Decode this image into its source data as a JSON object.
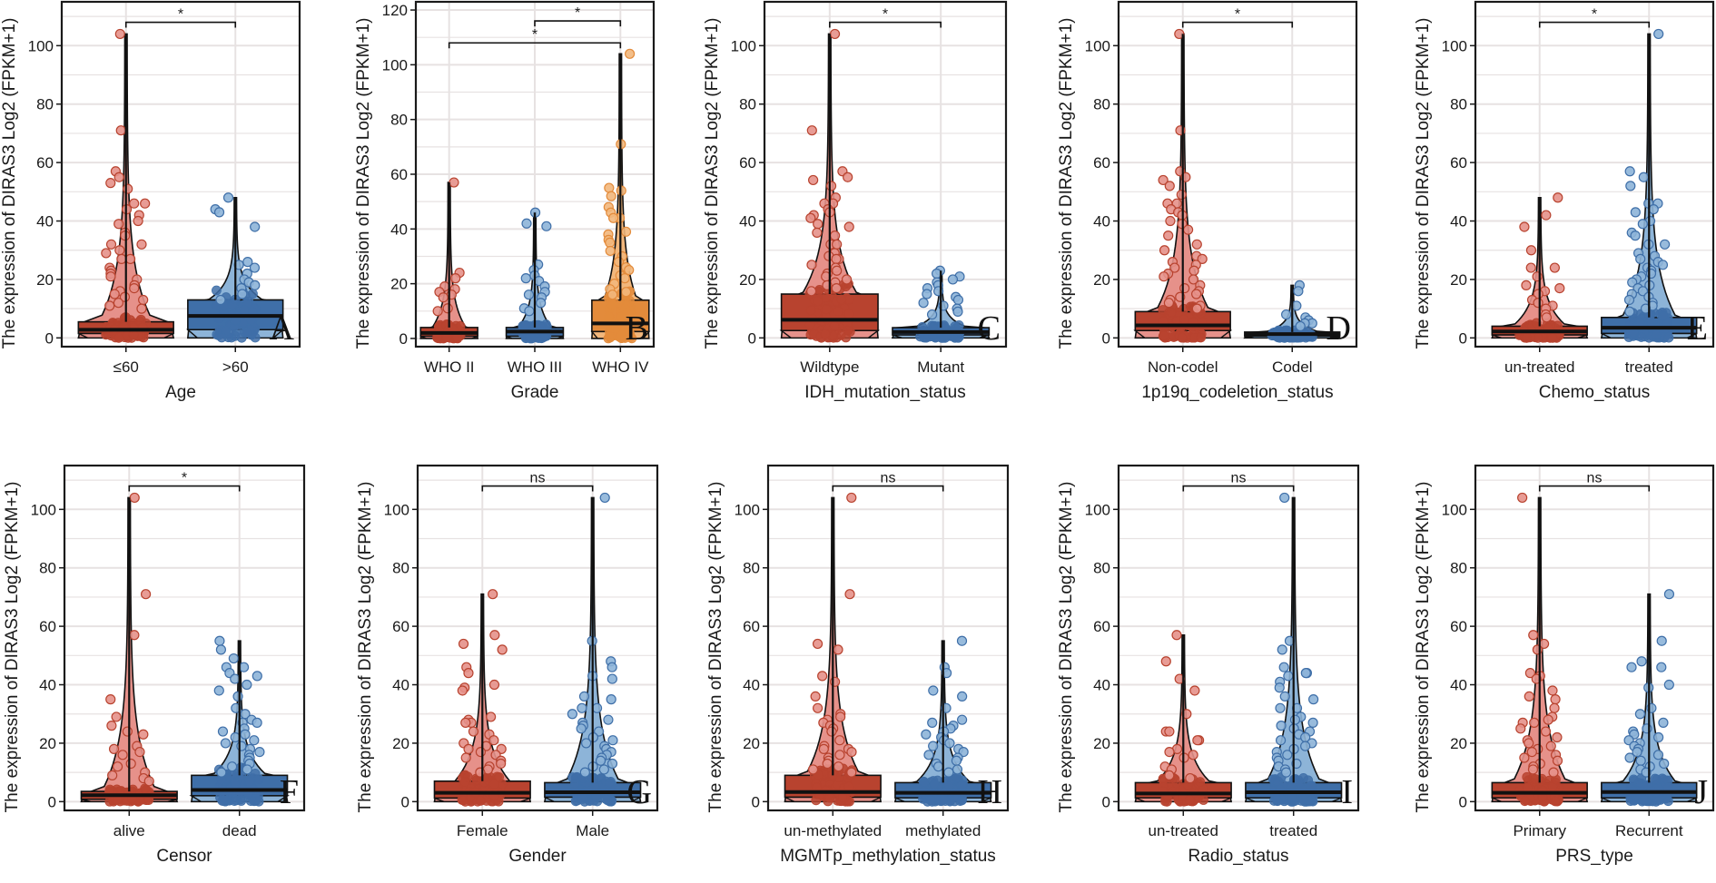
{
  "figure": {
    "ylabel": "The expression of DIRAS3 Log2 (FPKM+1)",
    "colors": {
      "red": "#b8432f",
      "red_light": "#e6918a",
      "blue": "#3f6fa8",
      "blue_light": "#8db4d8",
      "orange": "#e38b3b",
      "orange_light": "#f2b77c",
      "grid": "#e7e2e2",
      "frame": "#1a1a1a"
    }
  },
  "chart_data": [
    {
      "panel": "A",
      "type": "violin+box+jitter",
      "xlabel": "Age",
      "ylabel": "The expression of DIRAS3 Log2 (FPKM+1)",
      "yticks": [
        0,
        20,
        40,
        60,
        80,
        100
      ],
      "ylim": [
        -3,
        115
      ],
      "grid": true,
      "categories": [
        "≤60",
        ">60"
      ],
      "groups": [
        {
          "name": "≤60",
          "color": "red",
          "q1": 1.5,
          "median": 2.8,
          "q3": 5.5,
          "max": 104,
          "outliers": [
            104,
            71,
            57,
            55,
            53,
            51,
            46,
            46,
            44,
            42,
            40,
            39,
            36,
            35,
            32,
            32,
            30,
            29,
            27,
            27,
            24,
            23,
            22,
            21,
            20,
            18,
            17,
            16,
            15,
            14,
            13,
            12,
            11,
            10
          ]
        },
        {
          "name": ">60",
          "color": "blue",
          "q1": 2.8,
          "median": 7.5,
          "q3": 13,
          "max": 48,
          "outliers": [
            48,
            44,
            43,
            38,
            26,
            25,
            24,
            22,
            20,
            19,
            18,
            17,
            15,
            13
          ]
        }
      ],
      "comparisons": [
        {
          "from": 0,
          "to": 1,
          "label": "*",
          "y": 108
        }
      ]
    },
    {
      "panel": "B",
      "type": "violin+box+jitter",
      "xlabel": "Grade",
      "ylabel": "The expression of DIRAS3 Log2 (FPKM+1)",
      "yticks": [
        0,
        20,
        40,
        60,
        80,
        100,
        120
      ],
      "ylim": [
        -3,
        123
      ],
      "grid": true,
      "categories": [
        "WHO II",
        "WHO III",
        "WHO IV"
      ],
      "groups": [
        {
          "name": "WHO II",
          "color": "red",
          "q1": 0.8,
          "median": 2,
          "q3": 4,
          "max": 57,
          "outliers": [
            57,
            24,
            22,
            19,
            18,
            17,
            16,
            15,
            11,
            10
          ]
        },
        {
          "name": "WHO III",
          "color": "blue",
          "q1": 0.8,
          "median": 2.5,
          "q3": 4,
          "max": 46,
          "outliers": [
            46,
            42,
            41,
            27,
            25,
            23,
            22,
            21,
            19,
            17,
            16,
            15,
            13,
            11,
            10
          ]
        },
        {
          "name": "WHO IV",
          "color": "orange",
          "q1": 2.5,
          "median": 5.5,
          "q3": 14,
          "max": 104,
          "outliers": [
            104,
            71,
            55,
            54,
            52,
            48,
            46,
            44,
            44,
            39,
            38,
            36,
            35,
            32,
            30,
            28,
            26,
            25,
            23,
            22,
            20,
            18,
            17,
            16
          ]
        }
      ],
      "comparisons": [
        {
          "from": 1,
          "to": 2,
          "label": "*",
          "y": 116
        },
        {
          "from": 0,
          "to": 2,
          "label": "*",
          "y": 108
        }
      ]
    },
    {
      "panel": "C",
      "type": "violin+box+jitter",
      "xlabel": "IDH_mutation_status",
      "ylabel": "The expression of DIRAS3 Log2 (FPKM+1)",
      "yticks": [
        0,
        20,
        40,
        60,
        80,
        100
      ],
      "ylim": [
        -3,
        115
      ],
      "grid": true,
      "categories": [
        "Wildtype",
        "Mutant"
      ],
      "groups": [
        {
          "name": "Wildtype",
          "color": "red",
          "q1": 2.5,
          "median": 6.2,
          "q3": 15,
          "max": 104,
          "outliers": [
            104,
            71,
            57,
            55,
            54,
            52,
            48,
            46,
            46,
            44,
            43,
            42,
            41,
            39,
            38,
            36,
            35,
            32,
            32,
            29,
            28,
            27,
            27,
            25,
            24,
            23,
            22,
            21,
            20,
            19,
            18,
            17,
            16
          ]
        },
        {
          "name": "Mutant",
          "color": "blue",
          "q1": 1,
          "median": 2,
          "q3": 3.5,
          "max": 23,
          "outliers": [
            23,
            22,
            21,
            20,
            19,
            18,
            17,
            16,
            15,
            14,
            13,
            12,
            11,
            10,
            9,
            8
          ]
        }
      ],
      "comparisons": [
        {
          "from": 0,
          "to": 1,
          "label": "*",
          "y": 108
        }
      ]
    },
    {
      "panel": "D",
      "type": "violin+box+jitter",
      "xlabel": "1p19q_codeletion_status",
      "ylabel": "The expression of DIRAS3 Log2 (FPKM+1)",
      "yticks": [
        0,
        20,
        40,
        60,
        80,
        100
      ],
      "ylim": [
        -3,
        115
      ],
      "grid": true,
      "categories": [
        "Non-codel",
        "Codel"
      ],
      "groups": [
        {
          "name": "Non-codel",
          "color": "red",
          "q1": 2.5,
          "median": 4.3,
          "q3": 9,
          "max": 104,
          "outliers": [
            104,
            71,
            57,
            55,
            54,
            52,
            49,
            46,
            46,
            44,
            43,
            42,
            40,
            39,
            37,
            35,
            32,
            30,
            28,
            27,
            26,
            25,
            24,
            23,
            22,
            21,
            20,
            18,
            17,
            16,
            15,
            14,
            13,
            12,
            11,
            10
          ]
        },
        {
          "name": "Codel",
          "color": "blue",
          "q1": 0.6,
          "median": 1.3,
          "q3": 2,
          "max": 18,
          "outliers": [
            18,
            16,
            11,
            8,
            7,
            6,
            5,
            5,
            4
          ]
        }
      ],
      "comparisons": [
        {
          "from": 0,
          "to": 1,
          "label": "*",
          "y": 108
        }
      ]
    },
    {
      "panel": "E",
      "type": "violin+box+jitter",
      "xlabel": "Chemo_status",
      "ylabel": "The expression of DIRAS3 Log2 (FPKM+1)",
      "yticks": [
        0,
        20,
        40,
        60,
        80,
        100
      ],
      "ylim": [
        -3,
        115
      ],
      "grid": true,
      "categories": [
        "un-treated",
        "treated"
      ],
      "groups": [
        {
          "name": "un-treated",
          "color": "red",
          "q1": 1,
          "median": 2.2,
          "q3": 4,
          "max": 48,
          "outliers": [
            48,
            42,
            38,
            30,
            24,
            24,
            21,
            18,
            17,
            16,
            15,
            13,
            12,
            11,
            10,
            8,
            7
          ]
        },
        {
          "name": "treated",
          "color": "blue",
          "q1": 1.5,
          "median": 3.5,
          "q3": 7,
          "max": 104,
          "outliers": [
            104,
            57,
            55,
            52,
            46,
            46,
            44,
            43,
            40,
            39,
            36,
            35,
            32,
            32,
            29,
            28,
            27,
            26,
            25,
            24,
            23,
            22,
            21,
            20,
            19,
            18,
            17,
            16,
            15,
            14,
            13,
            12,
            11,
            10,
            9
          ]
        }
      ],
      "comparisons": [
        {
          "from": 0,
          "to": 1,
          "label": "*",
          "y": 108
        }
      ]
    },
    {
      "panel": "F",
      "type": "violin+box+jitter",
      "xlabel": "Censor",
      "ylabel": "The expression of DIRAS3 Log2 (FPKM+1)",
      "yticks": [
        0,
        20,
        40,
        60,
        80,
        100
      ],
      "ylim": [
        -3,
        115
      ],
      "grid": true,
      "categories": [
        "alive",
        "dead"
      ],
      "groups": [
        {
          "name": "alive",
          "color": "red",
          "q1": 0.8,
          "median": 2.2,
          "q3": 3.5,
          "max": 104,
          "outliers": [
            104,
            71,
            57,
            35,
            29,
            26,
            24,
            23,
            19,
            18,
            17,
            16,
            13,
            12,
            10,
            9,
            8,
            7
          ]
        },
        {
          "name": "dead",
          "color": "blue",
          "q1": 2,
          "median": 4,
          "q3": 9,
          "max": 55,
          "outliers": [
            55,
            52,
            49,
            46,
            46,
            44,
            43,
            42,
            40,
            38,
            36,
            32,
            30,
            28,
            27,
            27,
            25,
            24,
            23,
            22,
            21,
            20,
            19,
            18,
            17,
            16,
            15,
            14,
            13,
            12,
            11,
            10
          ]
        }
      ],
      "comparisons": [
        {
          "from": 0,
          "to": 1,
          "label": "*",
          "y": 108
        }
      ]
    },
    {
      "panel": "G",
      "type": "violin+box+jitter",
      "xlabel": "Gender",
      "ylabel": "The expression of DIRAS3 Log2 (FPKM+1)",
      "yticks": [
        0,
        20,
        40,
        60,
        80,
        100
      ],
      "ylim": [
        -3,
        115
      ],
      "grid": true,
      "categories": [
        "Female",
        "Male"
      ],
      "groups": [
        {
          "name": "Female",
          "color": "red",
          "q1": 1.2,
          "median": 3,
          "q3": 7,
          "max": 71,
          "outliers": [
            71,
            57,
            54,
            52,
            46,
            44,
            40,
            39,
            38,
            29,
            28,
            27,
            27,
            24,
            23,
            21,
            20,
            19,
            18,
            18,
            17,
            16,
            15,
            14,
            13,
            12,
            11,
            10
          ]
        },
        {
          "name": "Male",
          "color": "blue",
          "q1": 1.5,
          "median": 3.2,
          "q3": 6.5,
          "max": 104,
          "outliers": [
            104,
            55,
            48,
            46,
            43,
            42,
            36,
            35,
            32,
            32,
            30,
            28,
            27,
            26,
            25,
            24,
            22,
            21,
            20,
            19,
            18,
            17,
            16,
            15,
            14,
            13,
            12,
            11,
            10
          ]
        }
      ],
      "comparisons": [
        {
          "from": 0,
          "to": 1,
          "label": "ns",
          "y": 108
        }
      ]
    },
    {
      "panel": "H",
      "type": "violin+box+jitter",
      "xlabel": "MGMTp_methylation_status",
      "ylabel": "The expression of DIRAS3 Log2 (FPKM+1)",
      "yticks": [
        0,
        20,
        40,
        60,
        80,
        100
      ],
      "ylim": [
        -3,
        115
      ],
      "grid": true,
      "categories": [
        "un-methylated",
        "methylated"
      ],
      "groups": [
        {
          "name": "un-methylated",
          "color": "red",
          "q1": 1.5,
          "median": 3.3,
          "q3": 9,
          "max": 104,
          "outliers": [
            104,
            71,
            54,
            52,
            43,
            41,
            36,
            32,
            30,
            29,
            28,
            27,
            26,
            25,
            24,
            21,
            19,
            18,
            18,
            17,
            16,
            15,
            14,
            13,
            12,
            11,
            10
          ]
        },
        {
          "name": "methylated",
          "color": "blue",
          "q1": 1.3,
          "median": 3,
          "q3": 6.5,
          "max": 55,
          "outliers": [
            55,
            46,
            44,
            38,
            36,
            32,
            28,
            27,
            26,
            25,
            24,
            23,
            22,
            21,
            20,
            19,
            18,
            17,
            16,
            15,
            14,
            13,
            12,
            11,
            10
          ]
        }
      ],
      "comparisons": [
        {
          "from": 0,
          "to": 1,
          "label": "ns",
          "y": 108
        }
      ]
    },
    {
      "panel": "I",
      "type": "violin+box+jitter",
      "xlabel": "Radio_status",
      "ylabel": "The expression of DIRAS3 Log2 (FPKM+1)",
      "yticks": [
        0,
        20,
        40,
        60,
        80,
        100
      ],
      "ylim": [
        -3,
        115
      ],
      "grid": true,
      "categories": [
        "un-treated",
        "treated"
      ],
      "groups": [
        {
          "name": "un-treated",
          "color": "red",
          "q1": 1.3,
          "median": 2.8,
          "q3": 6.5,
          "max": 57,
          "outliers": [
            57,
            48,
            42,
            38,
            30,
            24,
            24,
            21,
            21,
            18,
            17,
            16,
            15,
            12,
            11,
            9,
            8
          ]
        },
        {
          "name": "treated",
          "color": "blue",
          "q1": 1.3,
          "median": 3.2,
          "q3": 6.5,
          "max": 104,
          "outliers": [
            104,
            55,
            52,
            46,
            44,
            44,
            43,
            41,
            39,
            36,
            35,
            32,
            32,
            29,
            28,
            27,
            26,
            25,
            24,
            23,
            22,
            21,
            20,
            19,
            18,
            17,
            16,
            15,
            14,
            13,
            12,
            11,
            10
          ]
        }
      ],
      "comparisons": [
        {
          "from": 0,
          "to": 1,
          "label": "ns",
          "y": 108
        }
      ]
    },
    {
      "panel": "J",
      "type": "violin+box+jitter",
      "xlabel": "PRS_type",
      "ylabel": "The expression of DIRAS3 Log2 (FPKM+1)",
      "yticks": [
        0,
        20,
        40,
        60,
        80,
        100
      ],
      "ylim": [
        -3,
        115
      ],
      "grid": true,
      "categories": [
        "Primary",
        "Recurrent"
      ],
      "groups": [
        {
          "name": "Primary",
          "color": "red",
          "q1": 1.3,
          "median": 3,
          "q3": 6.5,
          "max": 104,
          "outliers": [
            104,
            57,
            54,
            52,
            44,
            43,
            42,
            38,
            36,
            35,
            32,
            29,
            28,
            27,
            27,
            25,
            24,
            22,
            21,
            20,
            19,
            18,
            17,
            16,
            15,
            14,
            13,
            12,
            11,
            10
          ]
        },
        {
          "name": "Recurrent",
          "color": "blue",
          "q1": 1.3,
          "median": 3.3,
          "q3": 6.5,
          "max": 71,
          "outliers": [
            71,
            55,
            48,
            46,
            46,
            40,
            39,
            32,
            30,
            27,
            25,
            24,
            23,
            22,
            21,
            20,
            19,
            18,
            17,
            16,
            15,
            14,
            13,
            12,
            11,
            10
          ]
        }
      ],
      "comparisons": [
        {
          "from": 0,
          "to": 1,
          "label": "ns",
          "y": 108
        }
      ]
    }
  ]
}
